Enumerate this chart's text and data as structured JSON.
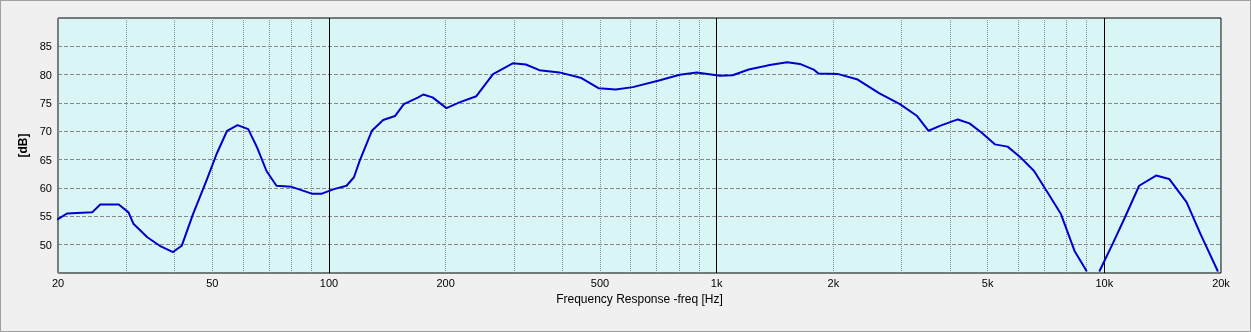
{
  "chart_data": {
    "type": "line",
    "xlabel": "Frequency Response -freq [Hz]",
    "ylabel": "[dB]",
    "log": "x",
    "grid": true,
    "marker": "none",
    "line_style": "solid",
    "xlim": [
      20,
      20000
    ],
    "ylim": [
      45,
      90
    ],
    "xticks": [
      20,
      {
        "value": 30,
        "label": null
      },
      {
        "value": 40,
        "label": null
      },
      50,
      {
        "value": 60,
        "label": null
      },
      {
        "value": 70,
        "label": null
      },
      {
        "value": 80,
        "label": null
      },
      {
        "value": 90,
        "label": null
      },
      100,
      200,
      {
        "value": 300,
        "label": null
      },
      {
        "value": 400,
        "label": null
      },
      500,
      {
        "value": 600,
        "label": null
      },
      {
        "value": 700,
        "label": null
      },
      {
        "value": 800,
        "label": null
      },
      {
        "value": 900,
        "label": null
      },
      {
        "value": 1000,
        "label": "1k"
      },
      {
        "value": 2000,
        "label": "2k"
      },
      {
        "value": 3000,
        "label": null
      },
      {
        "value": 4000,
        "label": null
      },
      {
        "value": 5000,
        "label": "5k"
      },
      {
        "value": 6000,
        "label": null
      },
      {
        "value": 7000,
        "label": null
      },
      {
        "value": 8000,
        "label": null
      },
      {
        "value": 9000,
        "label": null
      },
      {
        "value": 10000,
        "label": "10k"
      },
      {
        "value": 20000,
        "label": "20k"
      }
    ],
    "yticks": [
      50,
      55,
      60,
      65,
      70,
      75,
      80,
      85
    ],
    "series": [
      {
        "color": "#0000cc",
        "x": [
          20,
          21.1,
          24.5,
          25.7,
          28.7,
          30.4,
          31.3,
          34,
          36.6,
          39.6,
          41.7,
          44.6,
          48.3,
          51.3,
          54.6,
          58.1,
          61.9,
          65.2,
          69,
          73.2,
          80.1,
          90.3,
          95.9,
          103,
          111,
          116,
          120,
          129,
          138,
          148,
          156,
          170,
          175,
          185,
          201,
          217,
          240,
          265,
          298,
          322,
          349,
          393,
          448,
          497,
          549,
          608,
          714,
          803,
          889,
          1020,
          1100,
          1210,
          1370,
          1520,
          1640,
          1780,
          1830,
          2060,
          2300,
          2630,
          2970,
          3290,
          3520,
          3780,
          4190,
          4490,
          4820,
          5220,
          5630,
          6080,
          6590,
          7140,
          7730,
          8380,
          8990,
          9300,
          9730,
          10500,
          11300,
          12300,
          13600,
          14700,
          16300,
          17700,
          19600
        ],
        "values": [
          54.5,
          55.5,
          55.7,
          57.1,
          57.1,
          55.7,
          53.7,
          51.3,
          49.8,
          48.7,
          49.8,
          55.4,
          61.3,
          66,
          70.1,
          71.1,
          70.4,
          67.2,
          63,
          60.4,
          60.2,
          59,
          59,
          59.8,
          60.4,
          61.9,
          64.8,
          70.1,
          72,
          72.7,
          74.8,
          76,
          76.5,
          76,
          74.1,
          75.1,
          76.2,
          80.1,
          82,
          81.8,
          80.8,
          80.4,
          79.4,
          77.6,
          77.4,
          77.8,
          79,
          80,
          80.4,
          79.8,
          79.9,
          80.9,
          81.7,
          82.2,
          81.9,
          80.9,
          80.2,
          80.1,
          79.2,
          76.7,
          74.8,
          72.7,
          70.1,
          71,
          72.1,
          71.4,
          69.8,
          67.7,
          67.3,
          65.4,
          63,
          59.2,
          55.4,
          48.9,
          45.4,
          null,
          45.4,
          50.1,
          54.8,
          60.4,
          62.2,
          61.6,
          57.5,
          51.9,
          45.4
        ]
      }
    ]
  }
}
